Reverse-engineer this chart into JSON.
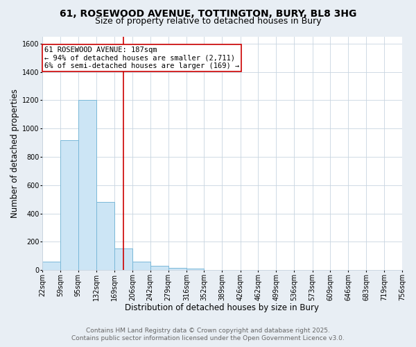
{
  "title_line1": "61, ROSEWOOD AVENUE, TOTTINGTON, BURY, BL8 3HG",
  "title_line2": "Size of property relative to detached houses in Bury",
  "xlabel": "Distribution of detached houses by size in Bury",
  "ylabel": "Number of detached properties",
  "bin_edges": [
    22,
    59,
    95,
    132,
    169,
    206,
    242,
    279,
    316,
    352,
    389,
    426,
    462,
    499,
    536,
    573,
    609,
    646,
    683,
    719,
    756
  ],
  "bar_heights": [
    60,
    920,
    1200,
    480,
    155,
    60,
    30,
    15,
    10,
    0,
    0,
    0,
    0,
    0,
    0,
    0,
    0,
    0,
    0,
    0
  ],
  "bar_color": "#cce5f5",
  "bar_edge_color": "#7ab8d8",
  "property_size": 187,
  "vline_color": "#cc0000",
  "annotation_text_line1": "61 ROSEWOOD AVENUE: 187sqm",
  "annotation_text_line2": "← 94% of detached houses are smaller (2,711)",
  "annotation_text_line3": "6% of semi-detached houses are larger (169) →",
  "annotation_box_color": "#ffffff",
  "annotation_box_edge": "#cc0000",
  "ylim": [
    0,
    1650
  ],
  "yticks": [
    0,
    200,
    400,
    600,
    800,
    1000,
    1200,
    1400,
    1600
  ],
  "footer_line1": "Contains HM Land Registry data © Crown copyright and database right 2025.",
  "footer_line2": "Contains public sector information licensed under the Open Government Licence v3.0.",
  "bg_color": "#e8eef4",
  "plot_bg_color": "#ffffff",
  "grid_color": "#c8d4e0",
  "title_fontsize": 10,
  "subtitle_fontsize": 9,
  "axis_label_fontsize": 8.5,
  "tick_fontsize": 7,
  "annotation_fontsize": 7.5,
  "footer_fontsize": 6.5
}
